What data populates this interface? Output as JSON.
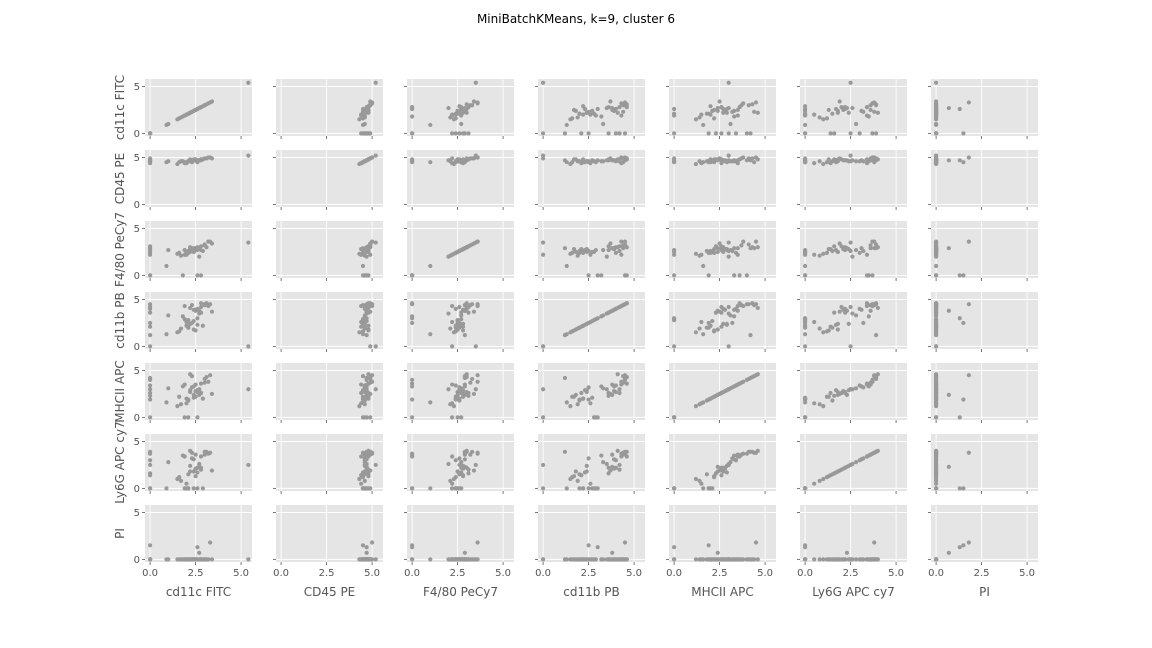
{
  "chart_data": {
    "type": "scatter",
    "layout": "scatter-matrix",
    "title": "MiniBatchKMeans, k=9, cluster 6",
    "variables": [
      "cd11c FITC",
      "CD45 PE",
      "F4/80 PeCy7",
      "cd11b PB",
      "MHCII APC",
      "Ly6G APC cy7",
      "PI"
    ],
    "xlim": [
      -0.28,
      5.6
    ],
    "ylim": [
      -0.28,
      5.8
    ],
    "xticks": [
      0.0,
      2.5,
      5.0
    ],
    "xtick_labels": [
      "0.0",
      "2.5",
      "5.0"
    ],
    "yticks": [
      0,
      5
    ],
    "ytick_labels": [
      "0",
      "5"
    ],
    "grid": true,
    "style": "ggplot",
    "point_color": "#999999",
    "panel_color": "#e5e5e5",
    "columns": [
      [
        2.1,
        2.5,
        2.8,
        1.6,
        3.0,
        2.2,
        2.7,
        1.9,
        2.4,
        3.2,
        2.0,
        2.6,
        1.8,
        2.9,
        2.3,
        3.4,
        1.5,
        2.8,
        2.1,
        2.5,
        0.0,
        0.0,
        0.0,
        0.0,
        0.0,
        0.0,
        0.0,
        0.0,
        0.9,
        1.0,
        2.4,
        2.2,
        2.6,
        3.0,
        1.7,
        2.7,
        2.3,
        5.4,
        2.0,
        3.1,
        2.6,
        2.2,
        1.9,
        2.5,
        2.8,
        3.3,
        2.1,
        2.4
      ],
      [
        4.6,
        4.7,
        4.8,
        4.5,
        4.9,
        4.6,
        4.7,
        4.5,
        4.8,
        5.0,
        4.4,
        4.7,
        4.6,
        4.8,
        4.5,
        4.9,
        4.3,
        4.8,
        4.6,
        4.7,
        4.6,
        4.7,
        4.5,
        4.8,
        4.6,
        4.9,
        4.4,
        4.7,
        4.5,
        4.6,
        4.7,
        4.8,
        4.5,
        4.9,
        4.6,
        4.7,
        4.6,
        5.2,
        4.5,
        4.9,
        4.7,
        4.6,
        4.4,
        4.8,
        4.7,
        5.0,
        4.6,
        4.7
      ],
      [
        2.6,
        2.9,
        3.1,
        2.4,
        3.3,
        2.8,
        2.0,
        2.7,
        2.5,
        3.6,
        2.2,
        3.0,
        0.0,
        2.6,
        2.9,
        3.4,
        2.3,
        0.0,
        2.5,
        2.8,
        2.4,
        2.9,
        0.0,
        3.1,
        2.6,
        2.2,
        2.8,
        0.0,
        1.0,
        2.7,
        2.5,
        3.0,
        2.7,
        3.2,
        2.1,
        2.9,
        2.6,
        3.5,
        2.4,
        3.0,
        0.0,
        2.5,
        2.2,
        2.8,
        2.7,
        3.6,
        2.4,
        2.9
      ],
      [
        2.0,
        3.8,
        4.2,
        1.6,
        4.5,
        2.4,
        3.5,
        2.9,
        1.8,
        4.3,
        2.6,
        4.0,
        3.2,
        2.2,
        4.4,
        3.7,
        1.5,
        4.6,
        2.8,
        3.9,
        4.0,
        1.2,
        2.5,
        3.6,
        4.2,
        0.0,
        2.1,
        4.5,
        1.3,
        3.3,
        2.7,
        4.1,
        2.3,
        4.4,
        1.9,
        3.8,
        2.5,
        0.0,
        2.2,
        4.6,
        3.0,
        2.4,
        4.3,
        1.7,
        3.6,
        4.5,
        2.0,
        3.9
      ],
      [
        1.8,
        3.5,
        2.6,
        2.2,
        4.1,
        2.9,
        3.0,
        0.0,
        2.4,
        3.8,
        1.5,
        2.7,
        3.3,
        2.0,
        4.4,
        2.5,
        1.2,
        3.6,
        0.0,
        2.8,
        3.4,
        4.2,
        1.9,
        2.3,
        3.0,
        0.0,
        2.6,
        4.0,
        1.6,
        3.1,
        2.1,
        4.6,
        2.9,
        3.7,
        1.4,
        2.4,
        3.2,
        3.0,
        2.0,
        4.3,
        0.0,
        2.7,
        3.5,
        2.2,
        2.6,
        4.5,
        1.9,
        3.3
      ],
      [
        1.5,
        3.6,
        2.0,
        1.2,
        3.9,
        2.4,
        2.6,
        0.0,
        1.8,
        3.7,
        0.5,
        2.2,
        3.5,
        0.0,
        3.8,
        1.9,
        1.0,
        3.4,
        0.0,
        2.1,
        3.0,
        3.9,
        0.0,
        1.6,
        2.5,
        0.0,
        1.4,
        3.7,
        0.0,
        2.8,
        0.0,
        4.0,
        1.7,
        3.6,
        0.8,
        2.3,
        3.2,
        2.5,
        0.0,
        3.9,
        0.0,
        1.8,
        3.4,
        1.3,
        2.2,
        3.8,
        0.0,
        3.1
      ],
      [
        0.0,
        0.0,
        0.0,
        0.0,
        0.0,
        0.0,
        0.0,
        0.0,
        0.0,
        0.0,
        0.0,
        0.0,
        0.0,
        0.0,
        0.0,
        0.0,
        0.0,
        0.0,
        0.0,
        0.0,
        0.0,
        0.0,
        1.5,
        0.0,
        0.0,
        0.0,
        0.0,
        0.0,
        0.0,
        0.0,
        0.0,
        0.0,
        0.0,
        0.0,
        0.0,
        0.7,
        0.0,
        0.0,
        0.0,
        0.0,
        1.3,
        0.0,
        0.0,
        0.0,
        0.0,
        1.8,
        0.0,
        0.0
      ]
    ]
  }
}
